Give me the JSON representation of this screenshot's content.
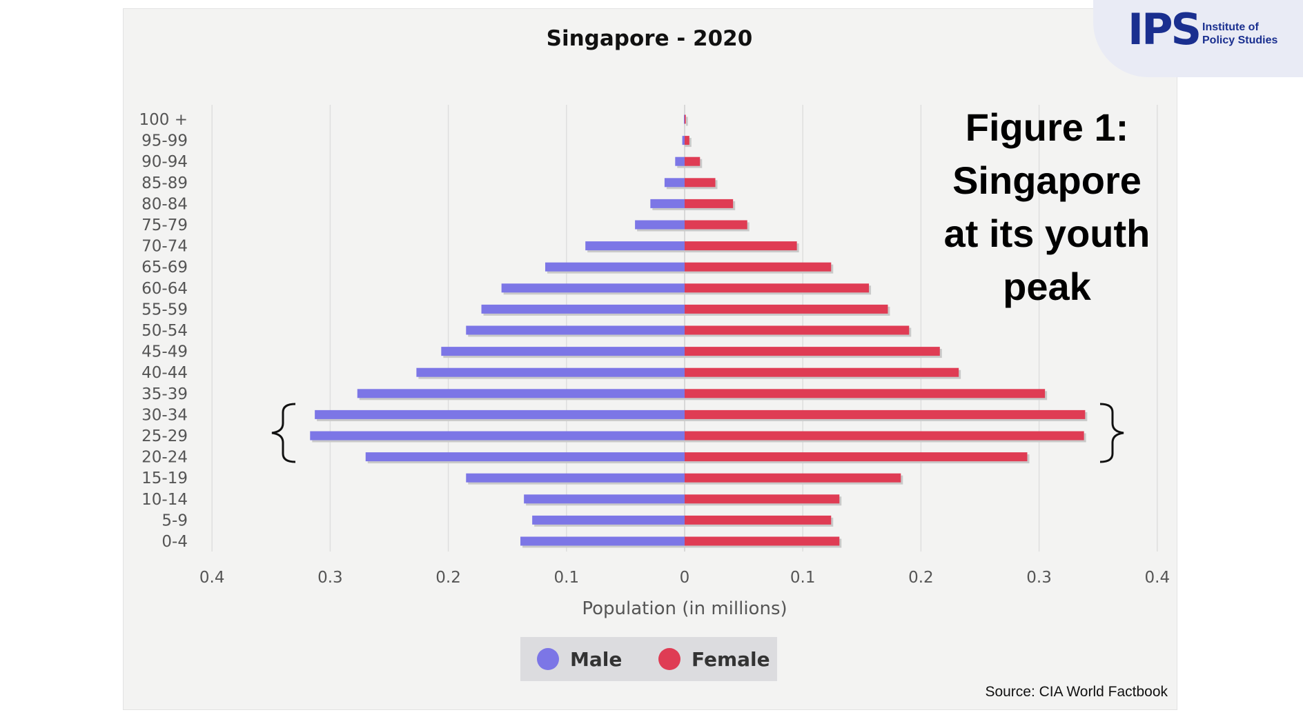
{
  "logo": {
    "mark": "IPS",
    "text_line1": "Institute of",
    "text_line2": "Policy Studies",
    "color": "#1a2f8f"
  },
  "caption": {
    "line1": "Figure 1:",
    "line2": "Singapore",
    "line3": "at its youth",
    "line4": "peak"
  },
  "source": "Source: CIA World Factbook",
  "chart_data": {
    "type": "bar",
    "orientation": "horizontal-pyramid",
    "title": "Singapore - 2020",
    "xlabel": "Population (in millions)",
    "ylabel": "",
    "xlim": [
      -0.4,
      0.4
    ],
    "x_ticks": [
      -0.4,
      -0.3,
      -0.2,
      -0.1,
      0,
      0.1,
      0.2,
      0.3,
      0.4
    ],
    "x_tick_labels": [
      "0.4",
      "0.3",
      "0.2",
      "0.1",
      "0",
      "0.1",
      "0.2",
      "0.3",
      "0.4"
    ],
    "grid": true,
    "legend_position": "bottom",
    "categories": [
      "100 +",
      "95-99",
      "90-94",
      "85-89",
      "80-84",
      "75-79",
      "70-74",
      "65-69",
      "60-64",
      "55-59",
      "50-54",
      "45-49",
      "40-44",
      "35-39",
      "30-34",
      "25-29",
      "20-24",
      "15-19",
      "10-14",
      "5-9",
      "0-4"
    ],
    "series": [
      {
        "name": "Male",
        "color": "#7c76e6",
        "values": [
          0.0005,
          0.002,
          0.008,
          0.017,
          0.029,
          0.042,
          0.084,
          0.118,
          0.155,
          0.172,
          0.185,
          0.206,
          0.227,
          0.277,
          0.313,
          0.317,
          0.27,
          0.185,
          0.136,
          0.129,
          0.139
        ]
      },
      {
        "name": "Female",
        "color": "#df3c54",
        "values": [
          0.001,
          0.004,
          0.013,
          0.026,
          0.041,
          0.053,
          0.095,
          0.124,
          0.156,
          0.172,
          0.19,
          0.216,
          0.232,
          0.305,
          0.339,
          0.338,
          0.29,
          0.183,
          0.131,
          0.124,
          0.131
        ]
      }
    ]
  }
}
